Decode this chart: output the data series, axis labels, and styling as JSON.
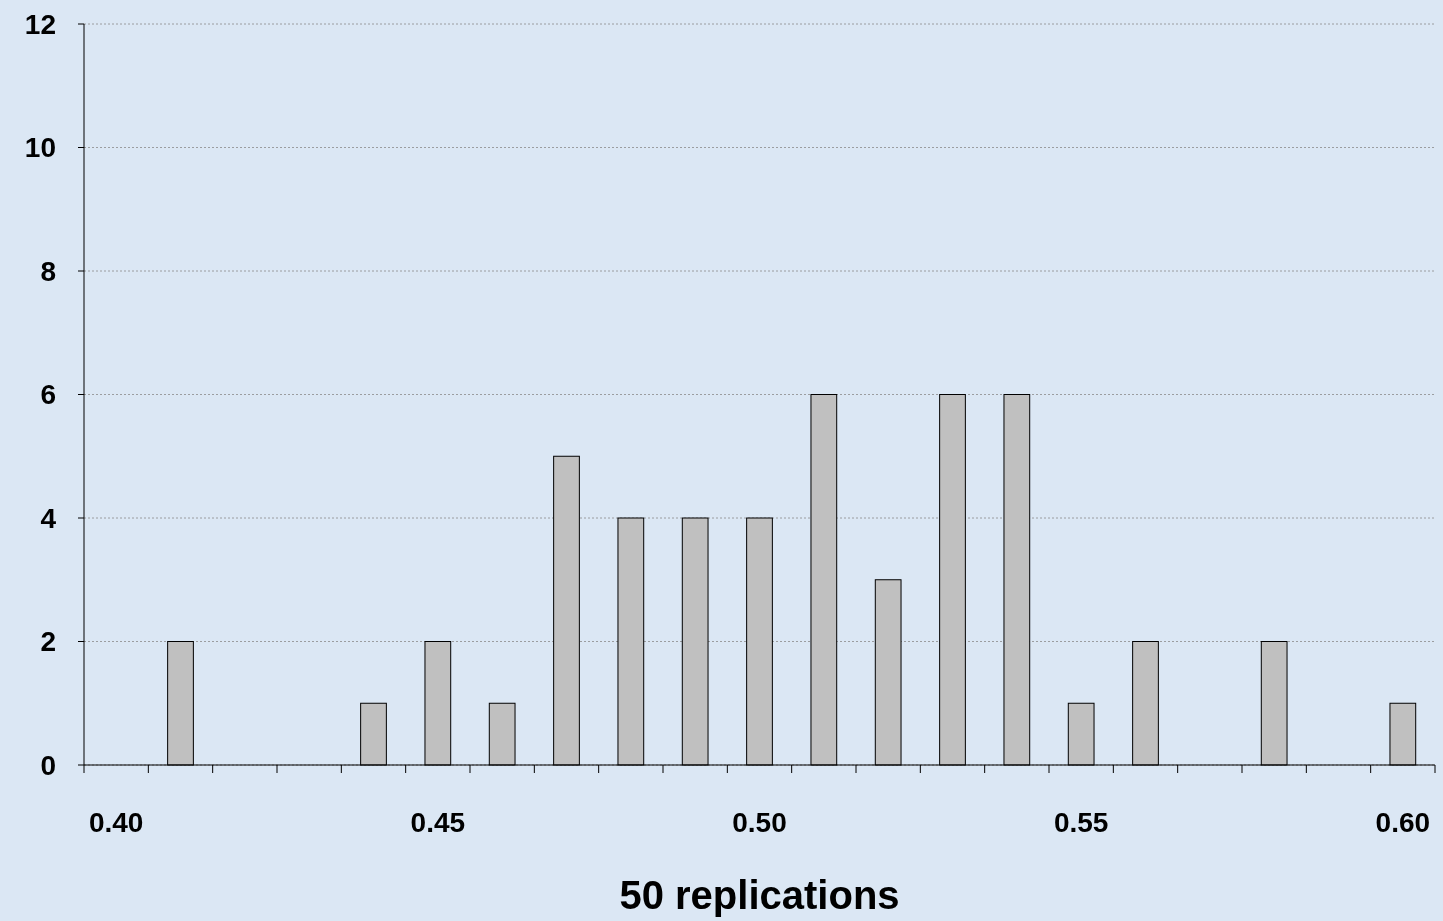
{
  "chart_data": {
    "type": "bar",
    "xlabel": "50 replications",
    "categories": [
      "0.40",
      null,
      null,
      null,
      null,
      "0.45",
      null,
      null,
      null,
      null,
      "0.50",
      null,
      null,
      null,
      null,
      "0.55",
      null,
      null,
      null,
      null,
      "0.60"
    ],
    "values": [
      0,
      2,
      0,
      0,
      1,
      2,
      1,
      5,
      4,
      4,
      4,
      6,
      3,
      6,
      6,
      1,
      2,
      0,
      2,
      0,
      1
    ],
    "color": "#c0c0c0",
    "ylim": [
      0,
      12
    ],
    "yticks": [
      0,
      2,
      4,
      6,
      8,
      10,
      12
    ],
    "grid": "y"
  }
}
